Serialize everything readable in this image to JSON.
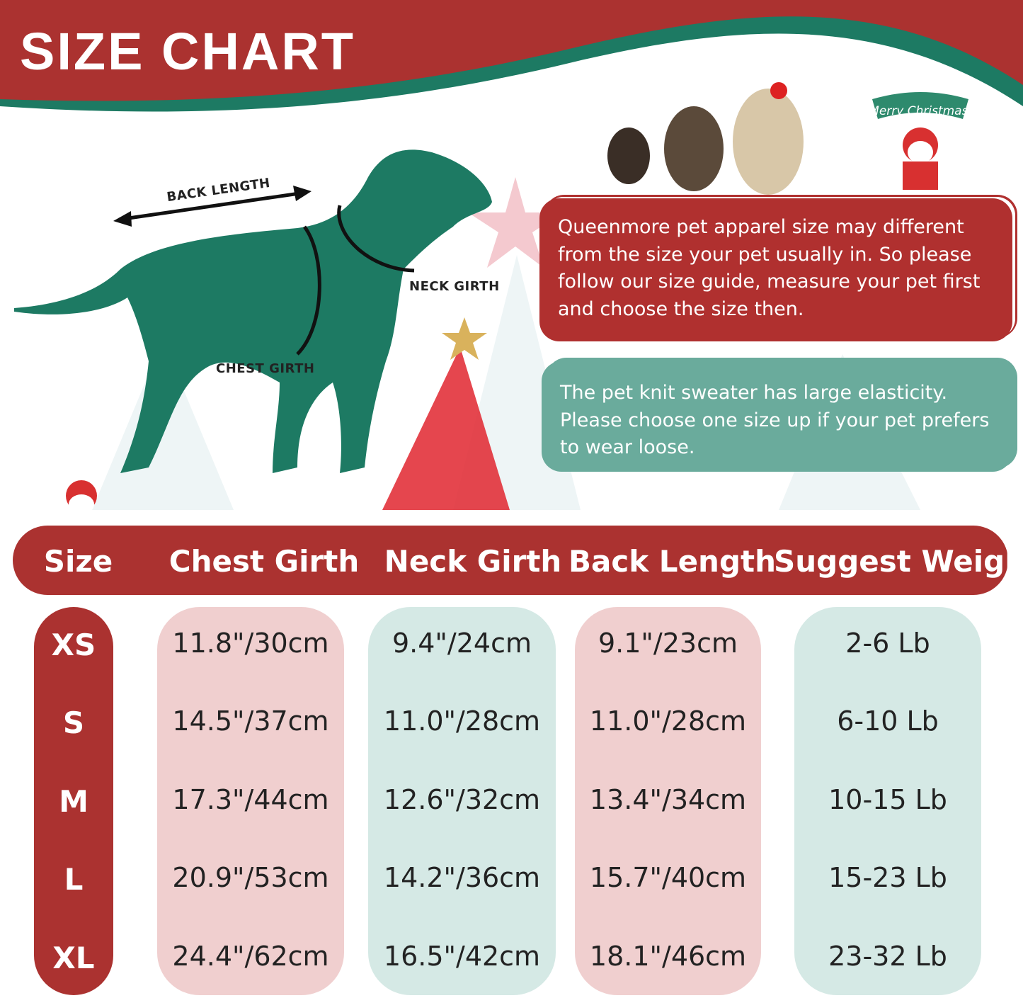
{
  "title": "SIZE CHART",
  "diagram_labels": {
    "back_length": "BACK LENGTH",
    "neck_girth": "NECK GIRTH",
    "chest_girth": "CHEST GIRTH"
  },
  "sign_text": "Merry Christmas.",
  "notice_red": "Queenmore pet apparel size may different from the size your pet usually in. So please follow our size guide, measure your pet first and choose the size then.",
  "notice_teal": "The pet knit sweater has large elasticity. Please choose one size up if your pet prefers to wear loose.",
  "colors": {
    "red": "#ab3230",
    "green": "#1d7a63",
    "pink": "#f0cfcf",
    "teal": "#d5e9e5"
  },
  "table": {
    "headers": [
      "Size",
      "Chest Girth",
      "Neck Girth",
      "Back Length",
      "Suggest Weight"
    ],
    "sizes": [
      "XS",
      "S",
      "M",
      "L",
      "XL"
    ],
    "chest_girth": [
      "11.8\"/30cm",
      "14.5\"/37cm",
      "17.3\"/44cm",
      "20.9\"/53cm",
      "24.4\"/62cm"
    ],
    "neck_girth": [
      "9.4\"/24cm",
      "11.0\"/28cm",
      "12.6\"/32cm",
      "14.2\"/36cm",
      "16.5\"/42cm"
    ],
    "back_length": [
      "9.1\"/23cm",
      "11.0\"/28cm",
      "13.4\"/34cm",
      "15.7\"/40cm",
      "18.1\"/46cm"
    ],
    "suggest_weight": [
      "2-6 Lb",
      "6-10 Lb",
      "10-15 Lb",
      "15-23 Lb",
      "23-32 Lb"
    ]
  }
}
